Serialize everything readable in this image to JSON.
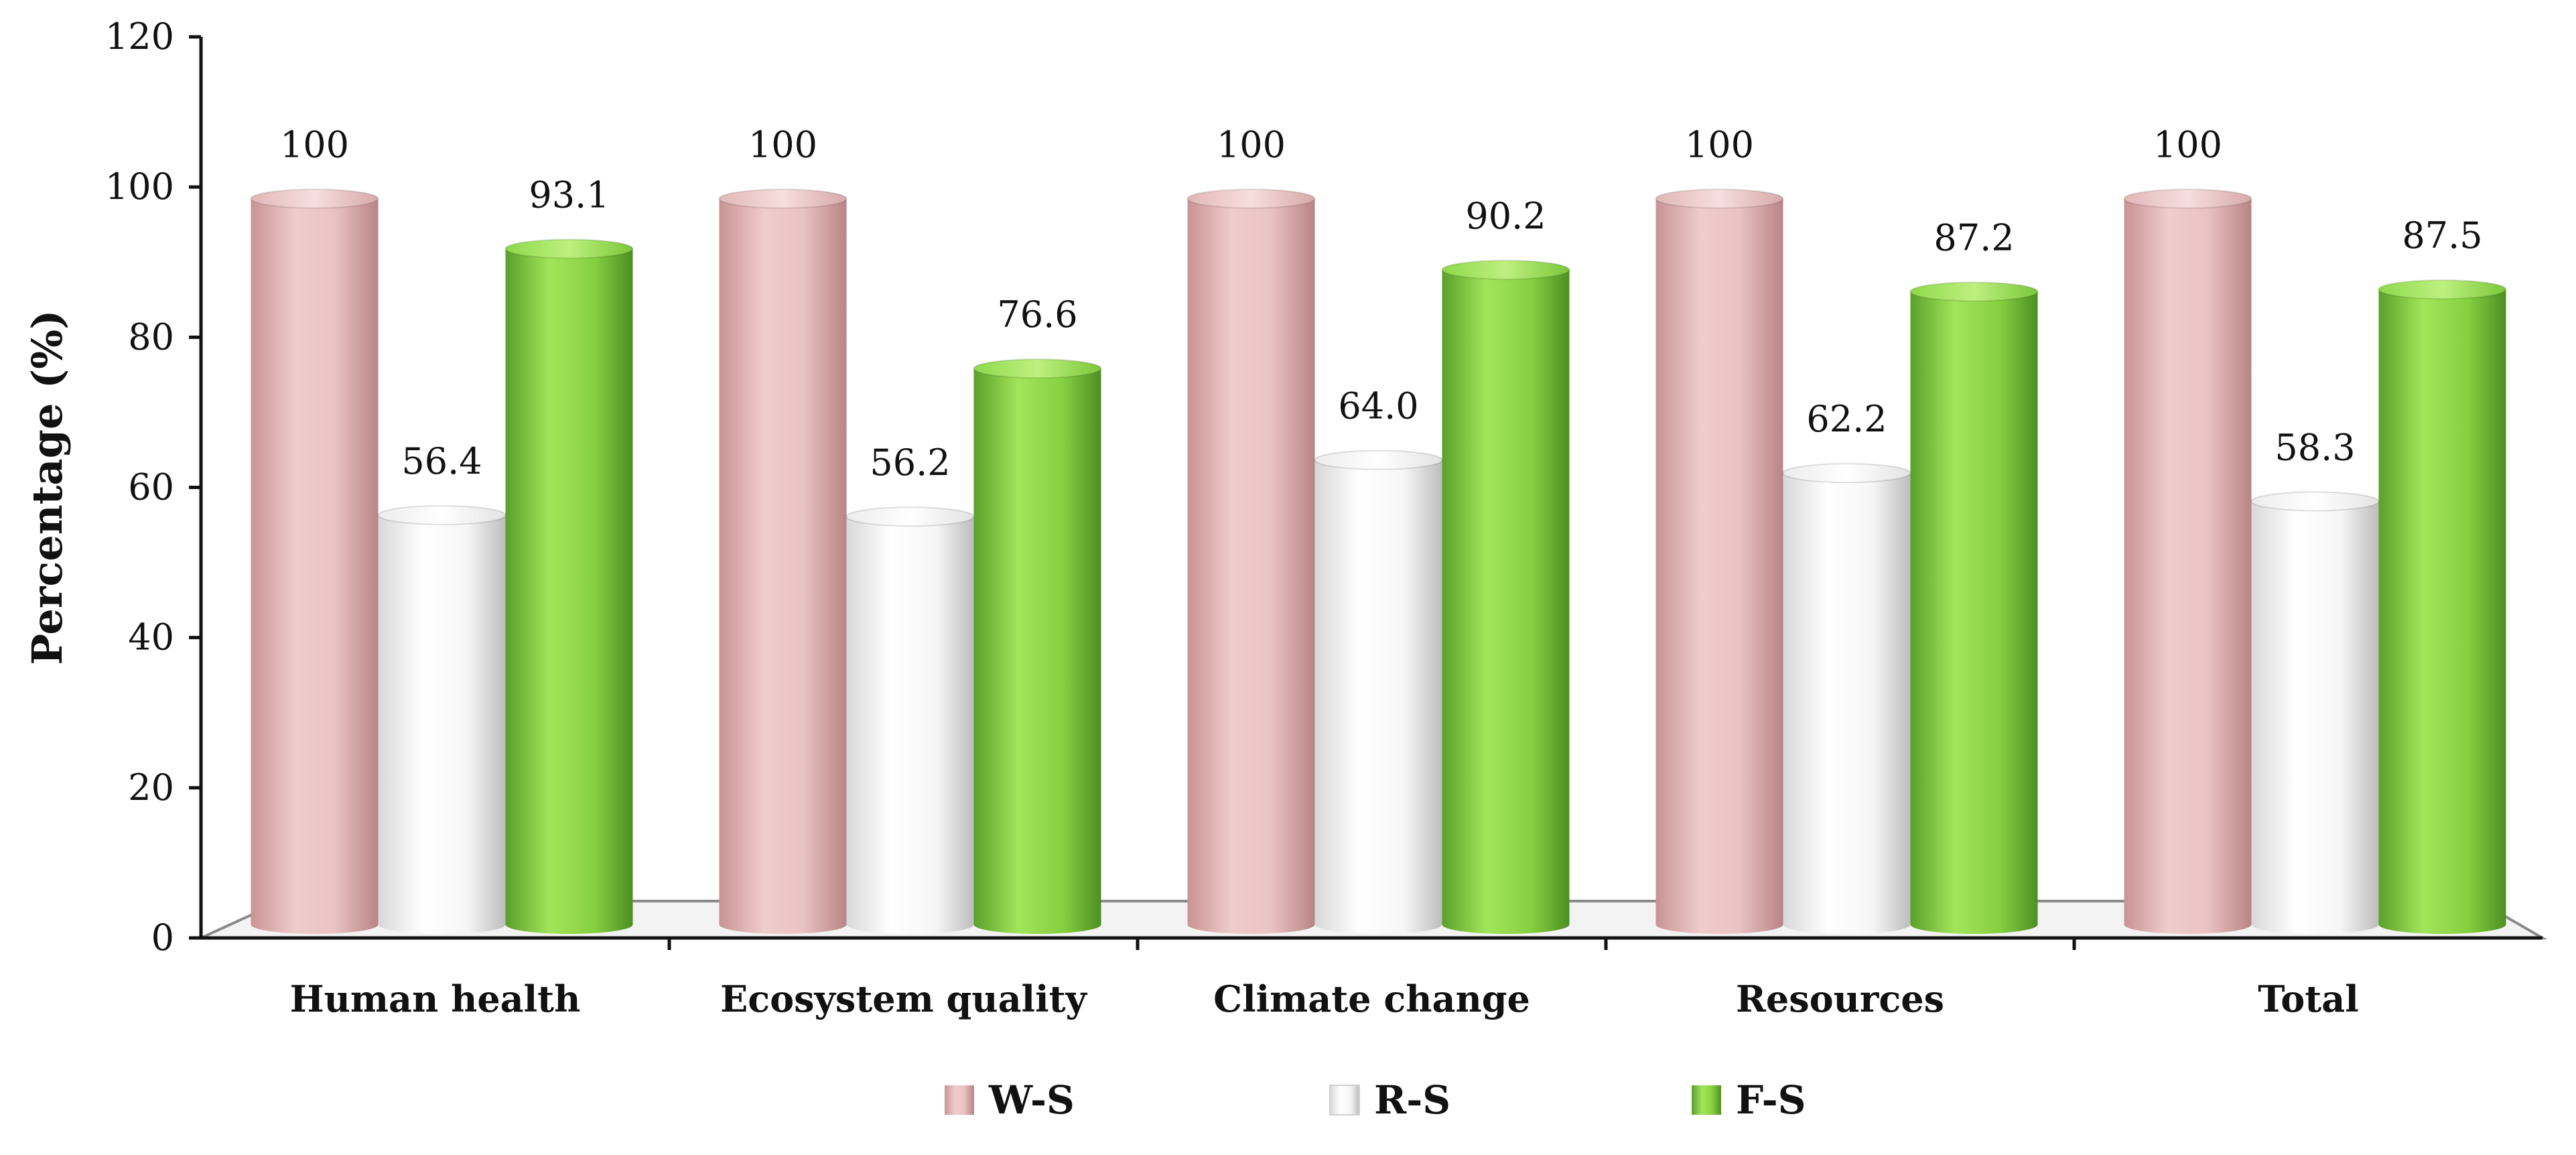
{
  "chart_data": {
    "type": "bar",
    "title": "",
    "xlabel": "",
    "ylabel": "Percentage (%)",
    "ylim": [
      0,
      120
    ],
    "yticks": [
      0,
      20,
      40,
      60,
      80,
      100,
      120
    ],
    "categories": [
      "Human health",
      "Ecosystem quality",
      "Climate change",
      "Resources",
      "Total"
    ],
    "series": [
      {
        "name": "W-S",
        "color": "#e8b9b9",
        "values": [
          100,
          100,
          100,
          100,
          100
        ],
        "labels": [
          "100",
          "100",
          "100",
          "100",
          "100"
        ]
      },
      {
        "name": "R-S",
        "color": "#f4f4f4",
        "values": [
          56.4,
          56.2,
          64.0,
          62.2,
          58.3
        ],
        "labels": [
          "56.4",
          "56.2",
          "64.0",
          "62.2",
          "58.3"
        ]
      },
      {
        "name": "F-S",
        "color": "#7fcf3a",
        "values": [
          93.1,
          76.6,
          90.2,
          87.2,
          87.5
        ],
        "labels": [
          "93.1",
          "76.6",
          "90.2",
          "87.2",
          "87.5"
        ]
      }
    ],
    "legend": {
      "position": "bottom-center",
      "items": [
        "W-S",
        "R-S",
        "F-S"
      ]
    },
    "grid": false
  }
}
